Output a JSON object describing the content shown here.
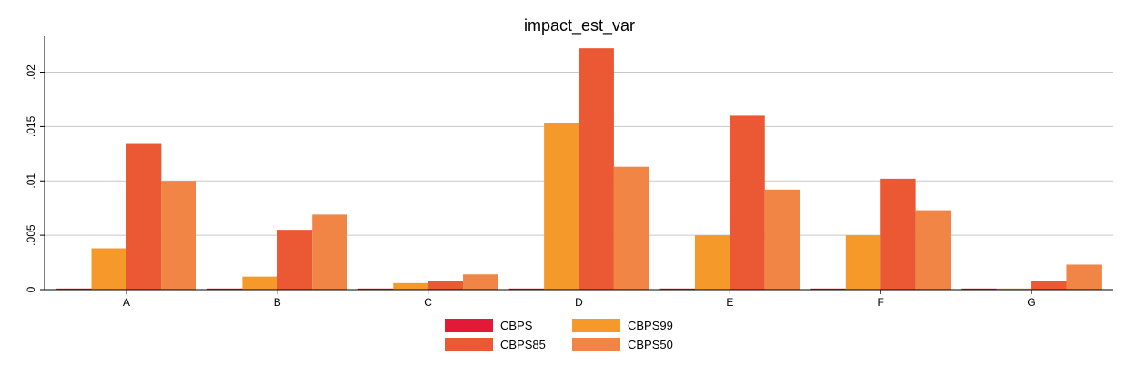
{
  "chart_data": {
    "type": "bar",
    "title": "impact_est_var",
    "xlabel": "",
    "ylabel": "",
    "categories": [
      "A",
      "B",
      "C",
      "D",
      "E",
      "F",
      "G"
    ],
    "ylim": [
      0,
      0.0233
    ],
    "yticks": [
      0,
      0.005,
      0.01,
      0.015,
      0.02
    ],
    "ytick_labels": [
      "0",
      ".005",
      ".01",
      ".015",
      ".02"
    ],
    "grid": true,
    "legend_position": "bottom",
    "series": [
      {
        "name": "CBPS",
        "color": "#e31a37",
        "values": [
          0.0001,
          0.0001,
          0.0001,
          0.0001,
          0.0001,
          0.0001,
          0.0001
        ]
      },
      {
        "name": "CBPS99",
        "color": "#f59a2a",
        "values": [
          0.0038,
          0.0012,
          0.0006,
          0.0153,
          0.005,
          0.005,
          0.0001
        ]
      },
      {
        "name": "CBPS85",
        "color": "#eb5834",
        "values": [
          0.0134,
          0.0055,
          0.0008,
          0.0222,
          0.016,
          0.0102,
          0.0008
        ]
      },
      {
        "name": "CBPS50",
        "color": "#f08545",
        "values": [
          0.01,
          0.0069,
          0.0014,
          0.0113,
          0.0092,
          0.0073,
          0.0023
        ]
      }
    ]
  }
}
